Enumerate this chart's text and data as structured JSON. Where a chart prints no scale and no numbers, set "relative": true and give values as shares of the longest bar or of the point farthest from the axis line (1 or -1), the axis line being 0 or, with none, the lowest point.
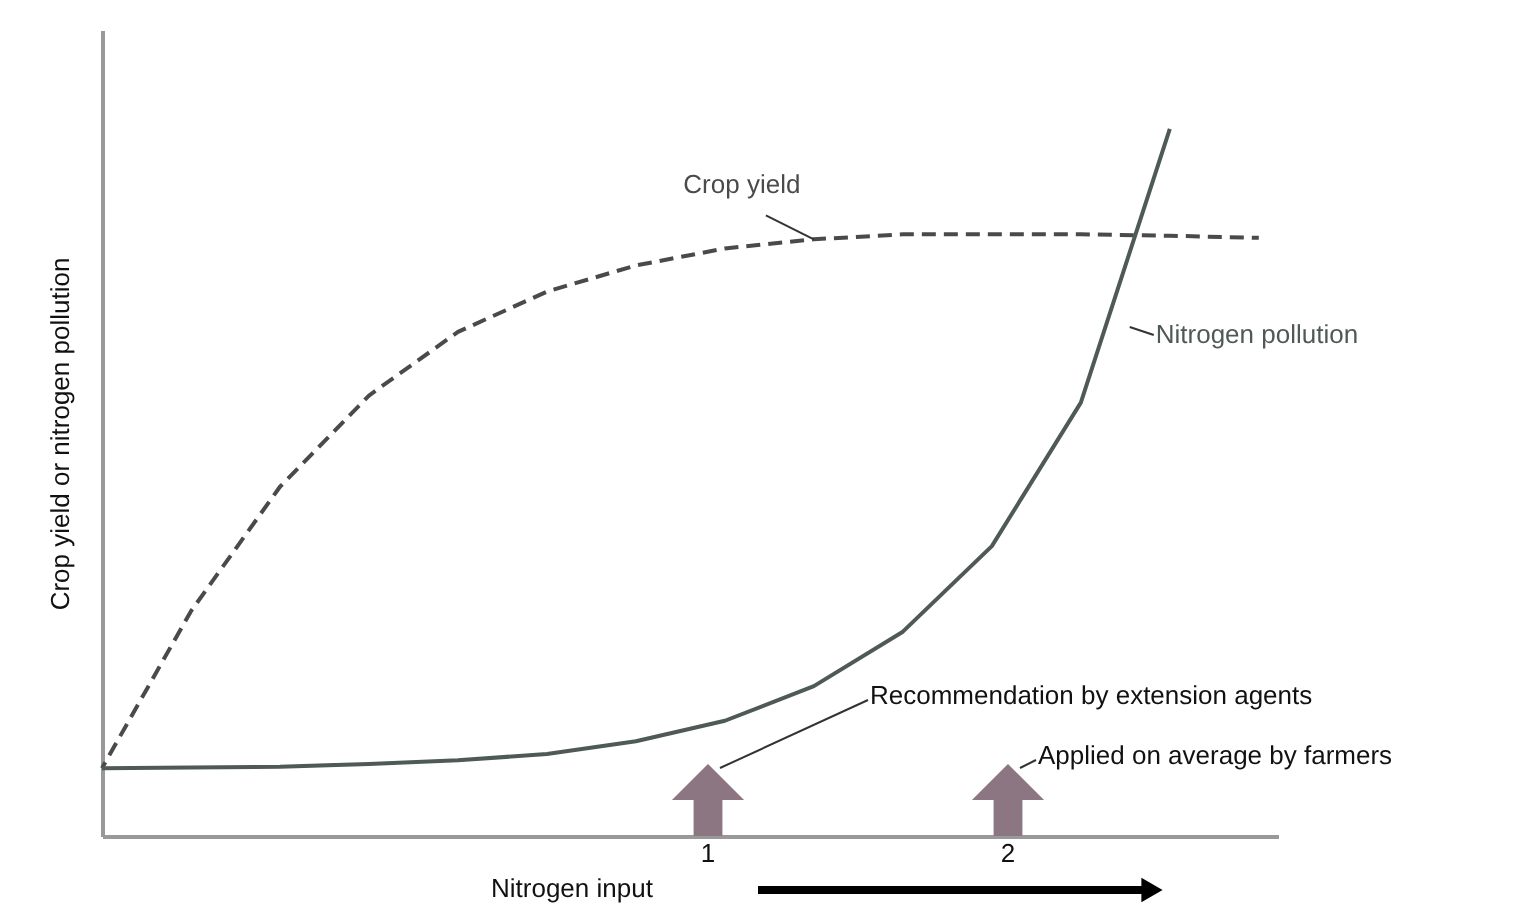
{
  "chart_data": {
    "type": "line",
    "relative": true,
    "tick_labels": false,
    "grid": false,
    "xlabel": "Nitrogen input",
    "ylabel": "Crop yield or nitrogen pollution",
    "categories": [
      null,
      null,
      null,
      null,
      null,
      null,
      null,
      null,
      null,
      null,
      null,
      null,
      null,
      null
    ],
    "series": [
      {
        "name": "Crop yield",
        "color": "#4a4a4a",
        "line_style": "dashed",
        "values": [
          0.096,
          0.318,
          0.494,
          0.623,
          0.713,
          0.77,
          0.807,
          0.831,
          0.844,
          0.851,
          0.851,
          0.851,
          0.849,
          0.846
        ]
      },
      {
        "name": "Nitrogen pollution",
        "color": "#4f5a55",
        "line_style": "solid",
        "values": [
          0.096,
          0.097,
          0.098,
          0.102,
          0.107,
          0.116,
          0.134,
          0.163,
          0.212,
          0.289,
          0.41,
          0.613,
          1.0,
          null
        ]
      }
    ],
    "annotations": [
      "Recommendation by extension agents",
      "Applied on average by farmers",
      "1",
      "2"
    ]
  }
}
